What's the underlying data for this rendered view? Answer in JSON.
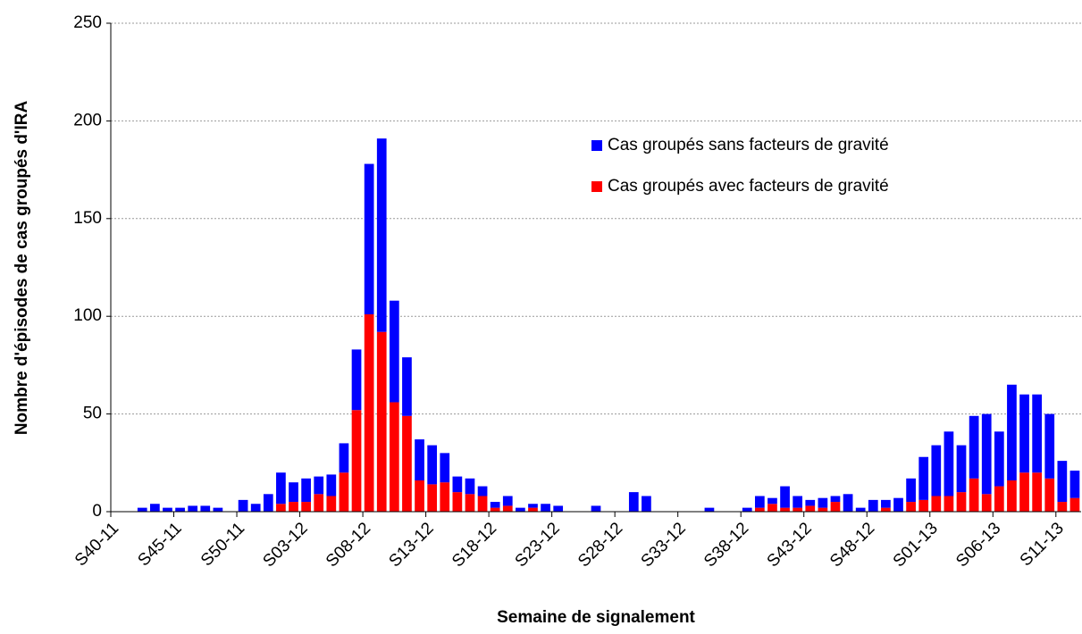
{
  "chart_data": {
    "type": "stacked-bar",
    "y_label": "Nombre d'épisodes de cas groupés d'IRA",
    "x_label": "Semaine de signalement",
    "categories": [
      "S40-11",
      null,
      null,
      null,
      null,
      "S45-11",
      null,
      null,
      null,
      null,
      "S50-11",
      null,
      null,
      null,
      null,
      "S03-12",
      null,
      null,
      null,
      null,
      "S08-12",
      null,
      null,
      null,
      null,
      "S13-12",
      null,
      null,
      null,
      null,
      "S18-12",
      null,
      null,
      null,
      null,
      "S23-12",
      null,
      null,
      null,
      null,
      "S28-12",
      null,
      null,
      null,
      null,
      "S33-12",
      null,
      null,
      null,
      null,
      "S38-12",
      null,
      null,
      null,
      null,
      "S43-12",
      null,
      null,
      null,
      null,
      "S48-12",
      null,
      null,
      null,
      null,
      "S01-13",
      null,
      null,
      null,
      null,
      "S06-13",
      null,
      null,
      null,
      null,
      "S11-13",
      null
    ],
    "series": [
      {
        "name": "Cas groupés sans facteurs de gravité",
        "color": "#0000ff",
        "values": [
          0,
          0,
          2,
          4,
          2,
          2,
          3,
          3,
          2,
          0,
          6,
          4,
          9,
          16,
          10,
          12,
          9,
          11,
          15,
          31,
          77,
          99,
          52,
          30,
          21,
          20,
          15,
          8,
          8,
          5,
          3,
          5,
          2,
          2,
          4,
          3,
          0,
          0,
          3,
          0,
          0,
          10,
          8,
          0,
          0,
          0,
          0,
          2,
          0,
          0,
          2,
          6,
          3,
          11,
          6,
          3,
          5,
          3,
          9,
          2,
          6,
          4,
          7,
          12,
          22,
          26,
          33,
          24,
          32,
          41,
          28,
          49,
          40,
          40,
          33,
          21,
          14
        ]
      },
      {
        "name": "Cas groupés avec facteurs de gravité",
        "color": "#ff0000",
        "values": [
          0,
          0,
          0,
          0,
          0,
          0,
          0,
          0,
          0,
          0,
          0,
          0,
          0,
          4,
          5,
          5,
          9,
          8,
          20,
          52,
          101,
          92,
          56,
          49,
          16,
          14,
          15,
          10,
          9,
          8,
          2,
          3,
          0,
          2,
          0,
          0,
          0,
          0,
          0,
          0,
          0,
          0,
          0,
          0,
          0,
          0,
          0,
          0,
          0,
          0,
          0,
          2,
          4,
          2,
          2,
          3,
          2,
          5,
          0,
          0,
          0,
          2,
          0,
          5,
          6,
          8,
          8,
          10,
          17,
          9,
          13,
          16,
          20,
          20,
          17,
          5,
          7
        ]
      }
    ],
    "ylim": [
      0,
      250
    ],
    "yticks": [
      0,
      50,
      100,
      150,
      200,
      250
    ],
    "grid": true
  }
}
